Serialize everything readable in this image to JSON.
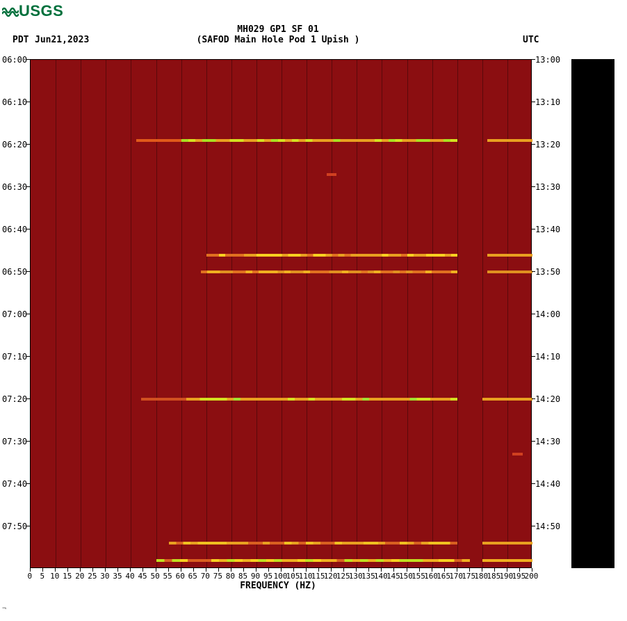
{
  "logo_text": "USGS",
  "title_line1": "MH029 GP1 SF 01",
  "title_line2": "(SAFOD Main Hole Pod 1 Upish )",
  "tz_left": "PDT",
  "date": "Jun21,2023",
  "tz_right": "UTC",
  "x_axis_label": "FREQUENCY (HZ)",
  "plot": {
    "background_color": "#8b0e11",
    "colorbar_color": "#000000",
    "grid_color": "#000000",
    "text_color": "#000000",
    "x_min": 0,
    "x_max": 200,
    "x_tick_step": 5,
    "x_ticks": [
      0,
      5,
      10,
      15,
      20,
      25,
      30,
      35,
      40,
      45,
      50,
      55,
      60,
      65,
      70,
      75,
      80,
      85,
      90,
      95,
      100,
      105,
      110,
      115,
      120,
      125,
      130,
      135,
      140,
      145,
      150,
      155,
      160,
      165,
      170,
      175,
      180,
      185,
      190,
      195,
      200
    ],
    "left_time_ticks": [
      "06:00",
      "06:10",
      "06:20",
      "06:30",
      "06:40",
      "06:50",
      "07:00",
      "07:10",
      "07:20",
      "07:30",
      "07:40",
      "07:50"
    ],
    "right_time_ticks": [
      "13:00",
      "13:10",
      "13:20",
      "13:30",
      "13:40",
      "13:50",
      "14:00",
      "14:10",
      "14:20",
      "14:30",
      "14:40",
      "14:50"
    ],
    "y_minutes_span": 120,
    "signal_rows": [
      {
        "minute_offset": 19,
        "segments": [
          {
            "fstart": 42,
            "fend": 60,
            "color": "#e05a1a"
          },
          {
            "fstart": 60,
            "fend": 170,
            "color_stops": [
              "#e8a020",
              "#d4e020",
              "#a8e020",
              "#e8a020"
            ]
          },
          {
            "fstart": 182,
            "fend": 200,
            "color": "#e8a020"
          }
        ]
      },
      {
        "minute_offset": 27,
        "segments": [
          {
            "fstart": 118,
            "fend": 122,
            "color": "#d04020"
          }
        ]
      },
      {
        "minute_offset": 46,
        "segments": [
          {
            "fstart": 70,
            "fend": 170,
            "color_stops": [
              "#e07020",
              "#f8d020",
              "#e8a020"
            ]
          },
          {
            "fstart": 182,
            "fend": 200,
            "color": "#e8a020"
          }
        ]
      },
      {
        "minute_offset": 50,
        "segments": [
          {
            "fstart": 68,
            "fend": 170,
            "color_stops": [
              "#e07020",
              "#f0b020",
              "#e09020"
            ]
          },
          {
            "fstart": 182,
            "fend": 200,
            "color": "#e09020"
          }
        ]
      },
      {
        "minute_offset": 80,
        "segments": [
          {
            "fstart": 44,
            "fend": 62,
            "color": "#d05020"
          },
          {
            "fstart": 62,
            "fend": 170,
            "color_stops": [
              "#e8a020",
              "#d4e020",
              "#a0e030",
              "#e8a020"
            ]
          },
          {
            "fstart": 180,
            "fend": 200,
            "color": "#e8a020"
          }
        ]
      },
      {
        "minute_offset": 93,
        "segments": [
          {
            "fstart": 192,
            "fend": 196,
            "color": "#d04020"
          }
        ]
      },
      {
        "minute_offset": 114,
        "segments": [
          {
            "fstart": 55,
            "fend": 170,
            "color_stops": [
              "#d86020",
              "#f0c020",
              "#e8a020"
            ]
          },
          {
            "fstart": 180,
            "fend": 200,
            "color": "#e8a020"
          }
        ]
      },
      {
        "minute_offset": 118,
        "segments": [
          {
            "fstart": 50,
            "fend": 175,
            "color_stops": [
              "#d86020",
              "#f8d020",
              "#c0e020",
              "#f0b020"
            ]
          },
          {
            "fstart": 180,
            "fend": 200,
            "color": "#f0b020"
          }
        ]
      }
    ]
  },
  "footer_mark": "¬"
}
